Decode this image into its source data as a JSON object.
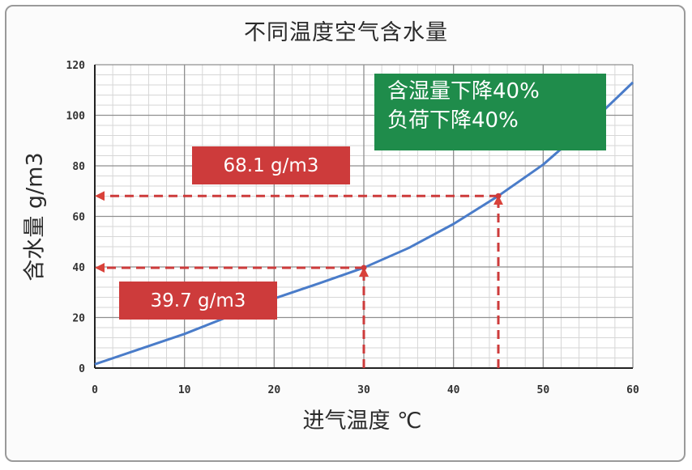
{
  "chart_data": {
    "type": "line",
    "title": "不同温度空气含水量",
    "xlabel": "进气温度 ℃",
    "ylabel": "含水量 g/m3",
    "xlim": [
      0,
      60
    ],
    "ylim": [
      0,
      120
    ],
    "xticks": [
      0,
      10,
      20,
      30,
      40,
      50,
      60
    ],
    "yticks": [
      0,
      20,
      40,
      60,
      80,
      100,
      120
    ],
    "grid": true,
    "series": [
      {
        "color": "#4a7cc9",
        "x": [
          0,
          5,
          10,
          15,
          20,
          25,
          30,
          35,
          40,
          45,
          50,
          55,
          60
        ],
        "y": [
          1.5,
          7.5,
          13.5,
          20.5,
          27.5,
          33.5,
          39.7,
          47.5,
          57.0,
          68.1,
          80.5,
          96.0,
          113.0
        ]
      }
    ],
    "annotations": [
      {
        "text": "39.7 g/m3",
        "x": 30,
        "y": 39.7,
        "color": "#cd3b3b"
      },
      {
        "text": "68.1 g/m3",
        "x": 45,
        "y": 68.1,
        "color": "#cd3b3b"
      }
    ],
    "callout": {
      "lines": [
        "含湿量下降40%",
        "负荷下降40%"
      ],
      "color": "#1f8c4b"
    }
  }
}
